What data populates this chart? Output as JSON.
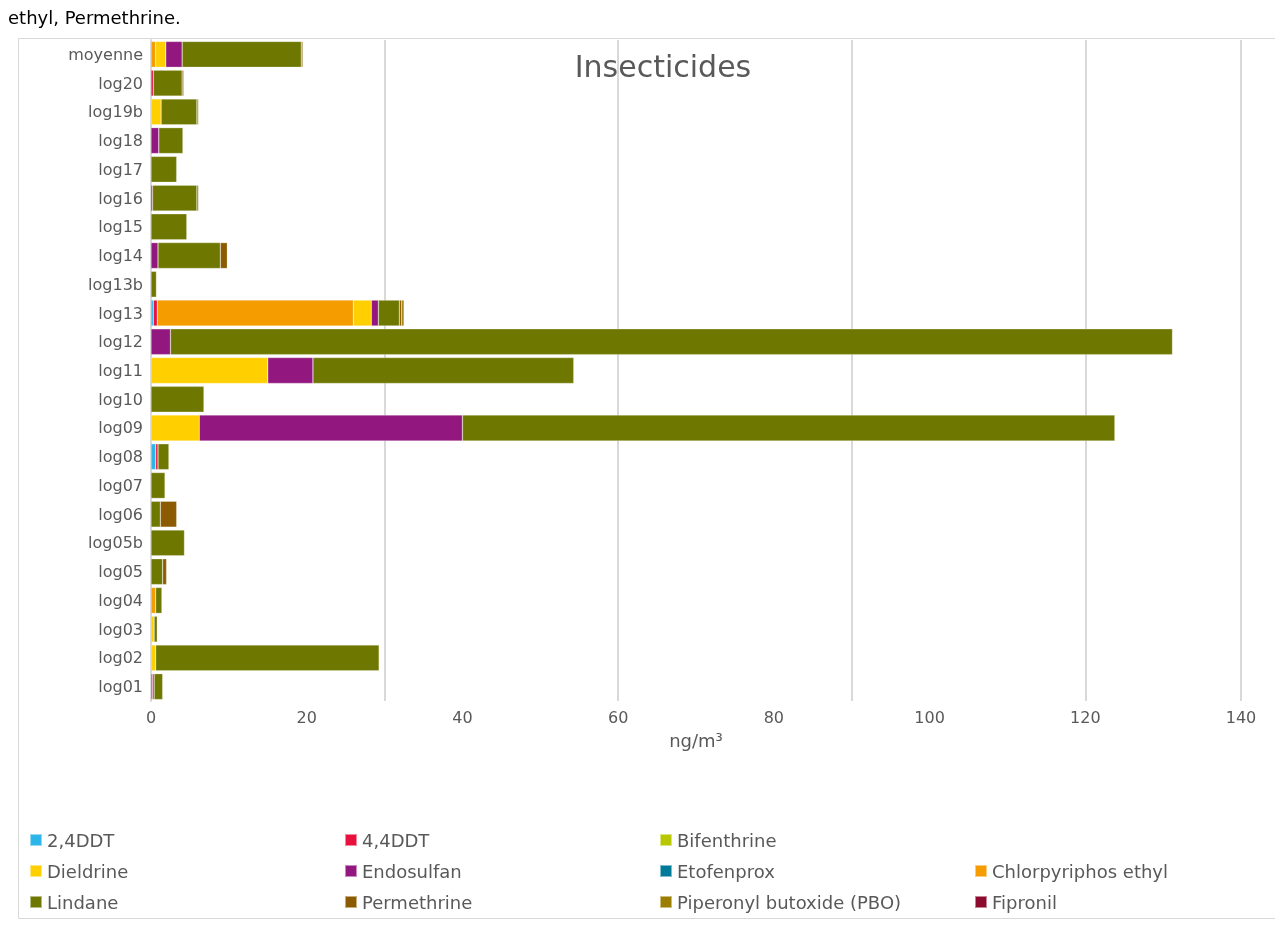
{
  "chart_data": {
    "type": "bar",
    "orientation": "horizontal",
    "stacked": true,
    "title": "Insecticides",
    "xlabel": "ng/m³",
    "annotations": [
      "ethyl, Permethrine."
    ],
    "categories": [
      "moyenne",
      "log20",
      "log19b",
      "log18",
      "log17",
      "log16",
      "log15",
      "log14",
      "log13b",
      "log13",
      "log12",
      "log11",
      "log10",
      "log09",
      "log08",
      "log07",
      "log06",
      "log05b",
      "log05",
      "log04",
      "log03",
      "log02",
      "log01"
    ],
    "series": [
      {
        "name": "2,4DDT",
        "color": "#2cb5e8",
        "values": [
          null,
          null,
          null,
          null,
          null,
          null,
          null,
          null,
          null,
          0.3,
          null,
          null,
          null,
          null,
          0.6,
          null,
          null,
          null,
          null,
          null,
          null,
          null,
          null
        ]
      },
      {
        "name": "4,4DDT",
        "color": "#e8103f",
        "values": [
          null,
          0.3,
          null,
          null,
          null,
          null,
          null,
          null,
          null,
          0.5,
          null,
          null,
          null,
          null,
          0.3,
          null,
          null,
          null,
          null,
          null,
          null,
          null,
          0.2
        ]
      },
      {
        "name": "Bifenthrine",
        "color": "#b8c800",
        "values": [
          null,
          null,
          null,
          null,
          null,
          null,
          null,
          null,
          null,
          null,
          null,
          null,
          null,
          null,
          null,
          null,
          null,
          null,
          null,
          null,
          null,
          null,
          null
        ]
      },
      {
        "name": "Chlorpyriphos ethyl",
        "color": "#f59c00",
        "values": [
          0.6,
          null,
          null,
          null,
          null,
          null,
          null,
          null,
          null,
          25.2,
          null,
          null,
          null,
          null,
          null,
          null,
          null,
          null,
          null,
          0.6,
          null,
          null,
          null
        ]
      },
      {
        "name": "Dieldrine",
        "color": "#ffcf00",
        "values": [
          1.3,
          null,
          1.3,
          null,
          null,
          null,
          null,
          null,
          null,
          2.3,
          null,
          15.0,
          null,
          6.2,
          null,
          null,
          null,
          null,
          null,
          null,
          0.4,
          0.6,
          null
        ]
      },
      {
        "name": "Endosulfan",
        "color": "#92177e",
        "values": [
          2.1,
          null,
          null,
          1.0,
          null,
          null,
          null,
          0.9,
          null,
          0.9,
          2.5,
          5.8,
          null,
          33.8,
          null,
          null,
          null,
          null,
          null,
          null,
          null,
          null,
          0.2
        ]
      },
      {
        "name": "Etofenprox",
        "color": "#007a99",
        "values": [
          null,
          null,
          null,
          null,
          null,
          null,
          null,
          null,
          null,
          null,
          null,
          null,
          null,
          null,
          null,
          null,
          null,
          null,
          null,
          null,
          null,
          null,
          null
        ]
      },
      {
        "name": "Fipronil",
        "color": "#8c0a2d",
        "values": [
          null,
          null,
          null,
          null,
          null,
          0.2,
          null,
          null,
          null,
          null,
          null,
          null,
          null,
          null,
          null,
          null,
          null,
          null,
          null,
          null,
          null,
          null,
          null
        ]
      },
      {
        "name": "Lindane",
        "color": "#6e7800",
        "values": [
          15.3,
          3.7,
          4.6,
          3.1,
          3.3,
          5.7,
          4.6,
          8.0,
          0.7,
          2.7,
          128.7,
          33.5,
          6.8,
          83.8,
          1.4,
          1.8,
          1.2,
          4.3,
          1.5,
          0.8,
          0.4,
          28.7,
          1.1
        ]
      },
      {
        "name": "Permethrine",
        "color": "#8c5a00",
        "values": [
          0.2,
          0.2,
          null,
          null,
          null,
          0.2,
          null,
          0.9,
          null,
          0.3,
          null,
          null,
          null,
          null,
          null,
          null,
          2.1,
          null,
          0.5,
          null,
          null,
          null,
          null
        ]
      },
      {
        "name": "Piperonyl butoxide (PBO)",
        "color": "#9b7d00",
        "values": [
          null,
          null,
          0.2,
          null,
          null,
          null,
          null,
          null,
          null,
          0.3,
          null,
          null,
          null,
          null,
          null,
          null,
          null,
          null,
          null,
          null,
          null,
          null,
          null
        ]
      }
    ],
    "xlim": [
      0,
      140
    ],
    "xticks": [
      0,
      20,
      40,
      60,
      80,
      100,
      120,
      140
    ],
    "grid": "x",
    "legend": "bottom"
  }
}
